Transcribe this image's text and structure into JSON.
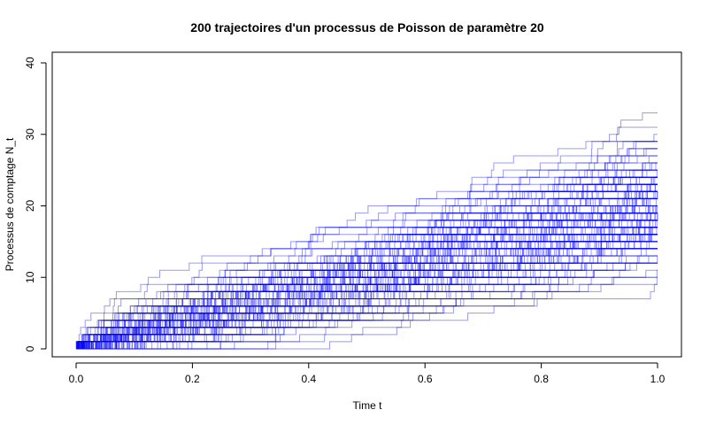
{
  "chart_data": {
    "type": "line",
    "title": "200 trajectoires d'un processus de Poisson de paramètre 20",
    "xlabel": "Time t",
    "ylabel": "Processus de comptage N_t",
    "xlim": [
      0,
      1
    ],
    "ylim": [
      0,
      40
    ],
    "x_ticks": [
      "0.0",
      "0.2",
      "0.4",
      "0.6",
      "0.8",
      "1.0"
    ],
    "y_ticks": [
      "0",
      "10",
      "20",
      "30",
      "40"
    ],
    "series_color": "#0000ff",
    "series_opacity": 0.4,
    "num_series": 200,
    "poisson_rate": 20,
    "series_endpoint_range": [
      8,
      34
    ],
    "grid": false,
    "legend": "none"
  }
}
